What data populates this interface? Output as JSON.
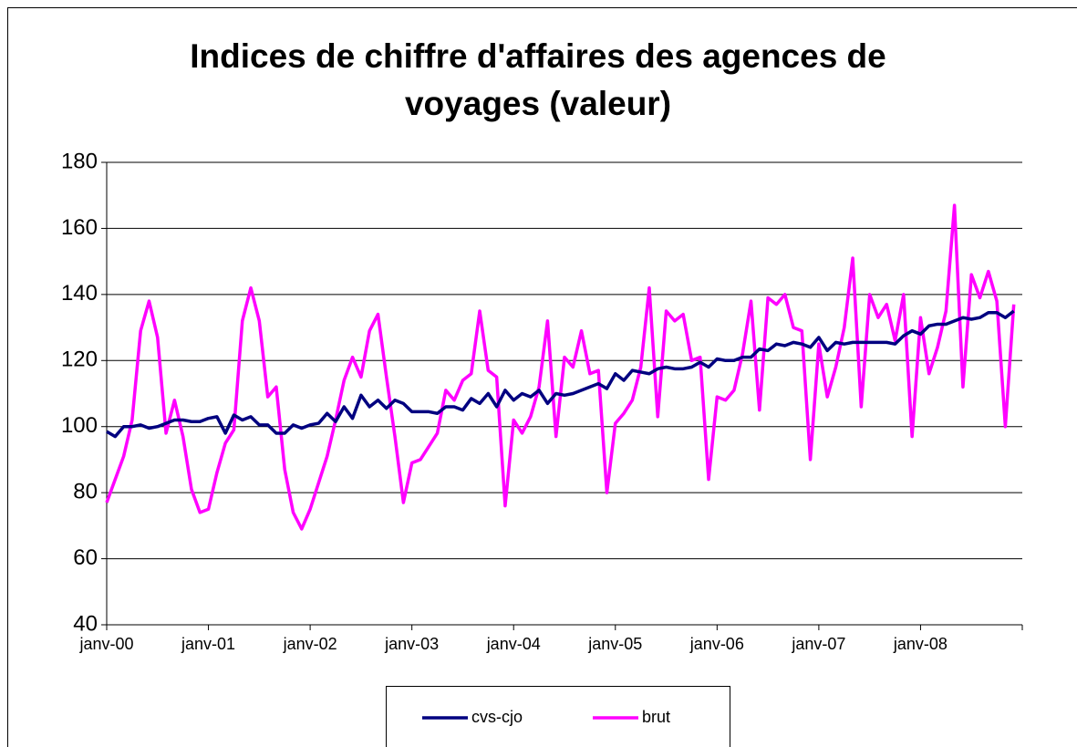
{
  "chart_data": {
    "type": "line",
    "title": "Indices de chiffre d'affaires des agences de voyages (valeur)",
    "categories": [
      "janv-00",
      null,
      null,
      null,
      null,
      null,
      null,
      null,
      null,
      null,
      null,
      null,
      "janv-01",
      null,
      null,
      null,
      null,
      null,
      null,
      null,
      null,
      null,
      null,
      null,
      "janv-02",
      null,
      null,
      null,
      null,
      null,
      null,
      null,
      null,
      null,
      null,
      null,
      "janv-03",
      null,
      null,
      null,
      null,
      null,
      null,
      null,
      null,
      null,
      null,
      null,
      "janv-04",
      null,
      null,
      null,
      null,
      null,
      null,
      null,
      null,
      null,
      null,
      null,
      "janv-05",
      null,
      null,
      null,
      null,
      null,
      null,
      null,
      null,
      null,
      null,
      null,
      "janv-06",
      null,
      null,
      null,
      null,
      null,
      null,
      null,
      null,
      null,
      null,
      null,
      "janv-07",
      null,
      null,
      null,
      null,
      null,
      null,
      null,
      null,
      null,
      null,
      null,
      "janv-08",
      null,
      null,
      null,
      null,
      null,
      null,
      null,
      null,
      null,
      null,
      null
    ],
    "series": [
      {
        "name": "cvs-cjo",
        "color": "#000080",
        "values": [
          98.5,
          97,
          100,
          100,
          100.5,
          99.5,
          100,
          101,
          102,
          102,
          101.5,
          101.5,
          102.5,
          103,
          98,
          103.5,
          102,
          103,
          100.5,
          100.5,
          98,
          98,
          100.5,
          99.5,
          100.5,
          101,
          104,
          101.5,
          106,
          102.5,
          109.5,
          106,
          108,
          105.5,
          108,
          107,
          104.5,
          104.5,
          104.5,
          104,
          106,
          106,
          105,
          108.5,
          107,
          110,
          106,
          111,
          108,
          110,
          109,
          111,
          107,
          110,
          109.5,
          110,
          111,
          112,
          113,
          111.5,
          116,
          114,
          117,
          116.5,
          116,
          117.5,
          118,
          117.5,
          117.5,
          118,
          119.5,
          118,
          120.5,
          120,
          120,
          121,
          121,
          123.5,
          123,
          125,
          124.5,
          125.5,
          125,
          124,
          127,
          123,
          125.5,
          125,
          125.5,
          125.5,
          125.5,
          125.5,
          125.5,
          125,
          127.5,
          129,
          128,
          130.5,
          131,
          131,
          132,
          133,
          132.5,
          133,
          134.5,
          134.5,
          133,
          135
        ]
      },
      {
        "name": "brut",
        "color": "#ff00ff",
        "values": [
          77,
          84,
          91,
          102,
          129,
          138,
          127,
          98,
          108,
          97,
          81,
          74,
          75,
          86,
          95,
          99,
          132,
          142,
          132,
          109,
          112,
          87,
          74,
          69,
          75,
          83,
          91,
          102,
          114,
          121,
          115,
          129,
          134,
          115,
          97,
          77,
          89,
          90,
          94,
          98,
          111,
          108,
          114,
          116,
          135,
          117,
          115,
          76,
          102,
          98,
          103,
          112,
          132,
          97,
          121,
          118,
          129,
          116,
          117,
          80,
          101,
          104,
          108,
          118,
          142,
          103,
          135,
          132,
          134,
          120,
          121,
          84,
          109,
          108,
          111,
          122,
          138,
          105,
          139,
          137,
          140,
          130,
          129,
          90,
          125,
          109,
          118,
          130,
          151,
          106,
          140,
          133,
          137,
          126,
          140,
          97,
          133,
          116,
          124,
          135,
          167,
          112,
          146,
          139,
          147,
          138,
          100,
          137
        ]
      }
    ],
    "ylim": [
      40,
      180
    ],
    "yticks": [
      40,
      60,
      80,
      100,
      120,
      140,
      160,
      180
    ],
    "grid": true,
    "legend": "bottom"
  }
}
